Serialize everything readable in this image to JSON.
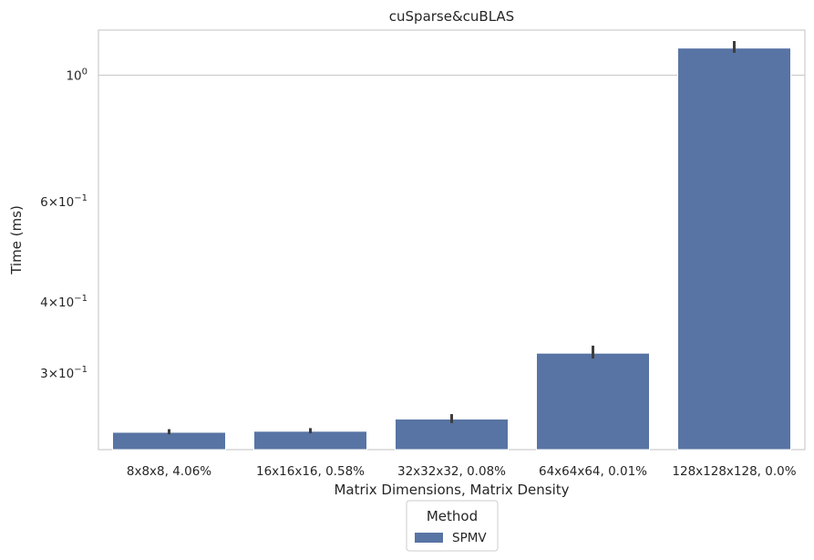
{
  "chart_data": {
    "type": "bar",
    "title": "cuSparse&cuBLAS",
    "xlabel": "Matrix Dimensions, Matrix Density",
    "ylabel": "Time (ms)",
    "yscale": "log",
    "ylim": [
      0.22,
      1.2
    ],
    "grid": "horizontal",
    "categories": [
      "8x8x8, 4.06%",
      "16x16x16, 0.58%",
      "32x32x32, 0.08%",
      "64x64x64, 0.01%",
      "128x128x128, 0.0%"
    ],
    "series": [
      {
        "name": "SPMV",
        "color": "#5874a4",
        "values": [
          0.236,
          0.237,
          0.249,
          0.325,
          1.116
        ],
        "error_low": [
          0.234,
          0.235,
          0.245,
          0.318,
          1.095
        ],
        "error_high": [
          0.239,
          0.24,
          0.254,
          0.335,
          1.148
        ]
      }
    ],
    "yticks": [
      {
        "value": 1.0,
        "base": "10",
        "exp": "0"
      },
      {
        "value": 0.6,
        "coef": "6",
        "base": "10",
        "exp": "−1"
      },
      {
        "value": 0.4,
        "coef": "4",
        "base": "10",
        "exp": "−1"
      },
      {
        "value": 0.3,
        "coef": "3",
        "base": "10",
        "exp": "−1"
      }
    ],
    "legend": {
      "title": "Method",
      "placement": "below-center",
      "entries": [
        "SPMV"
      ]
    }
  }
}
